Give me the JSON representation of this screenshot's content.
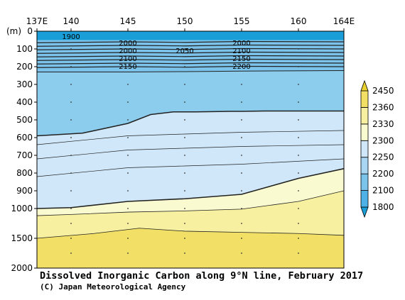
{
  "chart_data": {
    "type": "contour",
    "title": "Dissolved Inorganic Carbon along 9°N line, February 2017",
    "credit": "(C) Japan Meteorological Agency",
    "x_ticks": [
      "137E",
      "140",
      "145",
      "150",
      "155",
      "160",
      "164E"
    ],
    "x_values": [
      137,
      140,
      145,
      150,
      155,
      160,
      164
    ],
    "xlim": [
      137,
      164
    ],
    "y_unit_label": "(m)",
    "y_ticks": [
      "0",
      "100",
      "200",
      "300",
      "400",
      "500",
      "600",
      "700",
      "800",
      "900",
      "1000",
      "1500",
      "2000"
    ],
    "y_values": [
      0,
      100,
      200,
      300,
      400,
      500,
      600,
      700,
      800,
      900,
      1000,
      1500,
      2000
    ],
    "y_scale": "piecewise linear: 0-1000 m upper panel, 1000-2000 m compressed lower panel",
    "contour_labels": [
      "1900",
      "2000",
      "2000",
      "2100",
      "2150",
      "2050",
      "2000",
      "2100",
      "2150",
      "2200"
    ],
    "colorbar": {
      "levels": [
        "1800",
        "2100",
        "2200",
        "2250",
        "2300",
        "2330",
        "2360",
        "2450"
      ],
      "colors": [
        "#1a9ed8",
        "#4fb2e6",
        "#7cc3ec",
        "#a7d5f2",
        "#cfe7f8",
        "#fafad0",
        "#f6f0a0",
        "#f2e066",
        "#e9d22e"
      ]
    }
  }
}
